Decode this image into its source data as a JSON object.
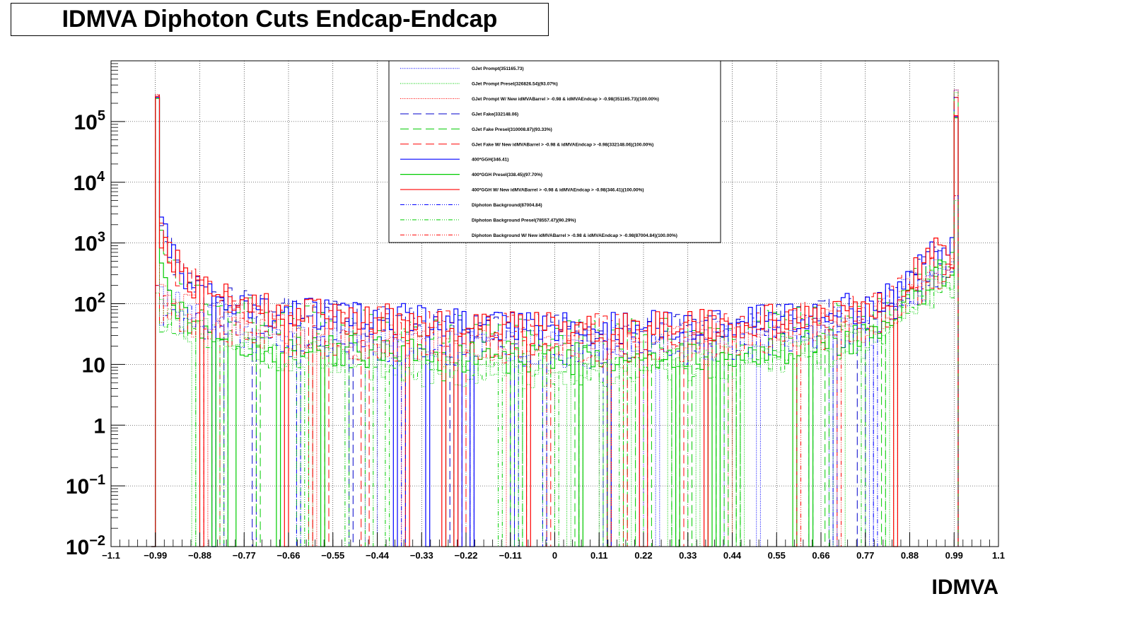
{
  "chart_data": {
    "type": "line",
    "title": "IDMVA Diphoton Cuts Endcap-Endcap",
    "xlabel": "IDMVA",
    "ylabel": "",
    "xlim": [
      -1.1,
      1.1
    ],
    "ylim": [
      0.01,
      1000000
    ],
    "yscale": "log",
    "grid": true,
    "legend_position": "top-center",
    "x_ticks": [
      "−1.1",
      "−0.99",
      "−0.88",
      "−0.77",
      "−0.66",
      "−0.55",
      "−0.44",
      "−0.33",
      "−0.22",
      "−0.11",
      "0",
      "0.11",
      "0.22",
      "0.33",
      "0.44",
      "0.55",
      "0.66",
      "0.77",
      "0.88",
      "0.99",
      "1.1"
    ],
    "x_tick_values": [
      -1.1,
      -0.99,
      -0.88,
      -0.77,
      -0.66,
      -0.55,
      -0.44,
      -0.33,
      -0.22,
      -0.11,
      0,
      0.11,
      0.22,
      0.33,
      0.44,
      0.55,
      0.66,
      0.77,
      0.88,
      0.99,
      1.1
    ],
    "y_ticks": [
      {
        "value": 0.01,
        "base": "10",
        "exp": "−2"
      },
      {
        "value": 0.1,
        "base": "10",
        "exp": "−1"
      },
      {
        "value": 1,
        "base": "1",
        "exp": ""
      },
      {
        "value": 10,
        "base": "10",
        "exp": ""
      },
      {
        "value": 100,
        "base": "10",
        "exp": "2"
      },
      {
        "value": 1000,
        "base": "10",
        "exp": "3"
      },
      {
        "value": 10000,
        "base": "10",
        "exp": "4"
      },
      {
        "value": 100000,
        "base": "10",
        "exp": "5"
      }
    ],
    "series": [
      {
        "name": "GJet Prompt(351165.73)",
        "color": "#0000ff",
        "dash": "1,1.5",
        "width": 1,
        "peak_low": 280000,
        "peak_high": 330000,
        "profile": [
          [
            -0.98,
            150
          ],
          [
            -0.9,
            80
          ],
          [
            -0.7,
            40
          ],
          [
            -0.4,
            25
          ],
          [
            0,
            20
          ],
          [
            0.4,
            30
          ],
          [
            0.8,
            60
          ],
          [
            0.95,
            400
          ]
        ]
      },
      {
        "name": "GJet Prompt Presel(326826.54)(93.07%)",
        "color": "#00cc00",
        "dash": "1,1.5",
        "width": 1,
        "peak_low": 240000,
        "peak_high": 300000,
        "profile": [
          [
            -0.98,
            90
          ],
          [
            -0.9,
            40
          ],
          [
            -0.7,
            15
          ],
          [
            -0.4,
            8
          ],
          [
            0,
            7
          ],
          [
            0.4,
            10
          ],
          [
            0.8,
            25
          ],
          [
            0.95,
            250
          ]
        ]
      },
      {
        "name": "GJet Prompt W/ New idMVABarrel > -0.98 & idMVAEndcap > -0.98(351165.73)(100.00%)",
        "color": "#ff0000",
        "dash": "1,1.5",
        "width": 1,
        "peak_low": 280000,
        "peak_high": 330000,
        "profile": [
          [
            -0.98,
            150
          ],
          [
            -0.9,
            80
          ],
          [
            -0.7,
            40
          ],
          [
            -0.4,
            25
          ],
          [
            0,
            20
          ],
          [
            0.4,
            30
          ],
          [
            0.8,
            60
          ],
          [
            0.95,
            400
          ]
        ]
      },
      {
        "name": "GJet Fake(332148.06)",
        "color": "#0000cc",
        "dash": "12,6",
        "width": 1,
        "peak_low": 270000,
        "peak_high": 250000,
        "profile": [
          [
            -0.98,
            1500
          ],
          [
            -0.93,
            300
          ],
          [
            -0.85,
            120
          ],
          [
            -0.7,
            70
          ],
          [
            -0.4,
            50
          ],
          [
            0,
            35
          ],
          [
            0.4,
            40
          ],
          [
            0.8,
            80
          ],
          [
            0.95,
            500
          ]
        ]
      },
      {
        "name": "GJet Fake Presel(310008.87)(93.33%)",
        "color": "#00cc00",
        "dash": "12,6",
        "width": 1,
        "peak_low": 250000,
        "peak_high": 230000,
        "profile": [
          [
            -0.98,
            1200
          ],
          [
            -0.93,
            250
          ],
          [
            -0.85,
            100
          ],
          [
            -0.7,
            55
          ],
          [
            -0.4,
            40
          ],
          [
            0,
            30
          ],
          [
            0.4,
            35
          ],
          [
            0.8,
            70
          ],
          [
            0.95,
            450
          ]
        ]
      },
      {
        "name": "GJet Fake W/ New idMVABarrel > -0.98 & idMVAEndcap > -0.98(332148.06)(100.00%)",
        "color": "#ff0000",
        "dash": "12,6",
        "width": 1,
        "peak_low": 270000,
        "peak_high": 250000,
        "profile": [
          [
            -0.98,
            1500
          ],
          [
            -0.93,
            300
          ],
          [
            -0.85,
            120
          ],
          [
            -0.7,
            70
          ],
          [
            -0.4,
            50
          ],
          [
            0,
            35
          ],
          [
            0.4,
            40
          ],
          [
            0.8,
            80
          ],
          [
            0.95,
            500
          ]
        ]
      },
      {
        "name": "400*GGH(346.41)",
        "color": "#0000ff",
        "dash": "",
        "width": 1.2,
        "peak_low": 250000,
        "peak_high": 120000,
        "profile": [
          [
            -0.98,
            1800
          ],
          [
            -0.93,
            350
          ],
          [
            -0.85,
            130
          ],
          [
            -0.7,
            75
          ],
          [
            -0.4,
            55
          ],
          [
            0,
            38
          ],
          [
            0.4,
            45
          ],
          [
            0.8,
            90
          ],
          [
            0.95,
            700
          ]
        ]
      },
      {
        "name": "400*GGH Presel(338.45)(97.70%)",
        "color": "#00cc00",
        "dash": "",
        "width": 1.2,
        "peak_low": 240000,
        "peak_high": 115000,
        "profile": [
          [
            -0.98,
            300
          ],
          [
            -0.93,
            60
          ],
          [
            -0.85,
            25
          ],
          [
            -0.7,
            18
          ],
          [
            -0.4,
            15
          ],
          [
            0,
            12
          ],
          [
            0.4,
            14
          ],
          [
            0.8,
            30
          ],
          [
            0.95,
            300
          ]
        ]
      },
      {
        "name": "400*GGH W/ New idMVABarrel > -0.98 & idMVAEndcap > -0.98(346.41)(100.00%)",
        "color": "#ff0000",
        "dash": "",
        "width": 1.2,
        "peak_low": 260000,
        "peak_high": 125000,
        "profile": [
          [
            -0.98,
            1800
          ],
          [
            -0.93,
            350
          ],
          [
            -0.85,
            130
          ],
          [
            -0.7,
            75
          ],
          [
            -0.4,
            55
          ],
          [
            0,
            38
          ],
          [
            0.4,
            45
          ],
          [
            0.8,
            90
          ],
          [
            0.95,
            700
          ]
        ]
      },
      {
        "name": "Diphoton Background(87004.84)",
        "color": "#0000ff",
        "dash": "6,2,1,2,1,2,1,2",
        "width": 1,
        "peak_low": 200,
        "peak_high": 6000,
        "profile": [
          [
            -0.98,
            80
          ],
          [
            -0.9,
            50
          ],
          [
            -0.7,
            25
          ],
          [
            -0.4,
            20
          ],
          [
            0,
            15
          ],
          [
            0.4,
            20
          ],
          [
            0.8,
            40
          ],
          [
            0.95,
            300
          ]
        ]
      },
      {
        "name": "Diphoton Background Presel(78557.47)(90.29%)",
        "color": "#00cc00",
        "dash": "6,2,1,2,1,2,1,2",
        "width": 1,
        "peak_low": 150,
        "peak_high": 5000,
        "profile": [
          [
            -0.98,
            60
          ],
          [
            -0.9,
            30
          ],
          [
            -0.7,
            15
          ],
          [
            -0.4,
            10
          ],
          [
            0,
            8
          ],
          [
            0.4,
            10
          ],
          [
            0.8,
            20
          ],
          [
            0.95,
            200
          ]
        ]
      },
      {
        "name": "Diphoton Background W/ New idMVABarrel > -0.98 & idMVAEndcap > -0.98(87004.84)(100.00%)",
        "color": "#ff0000",
        "dash": "6,2,1,2,1,2,1,2",
        "width": 1,
        "peak_low": 200,
        "peak_high": 6000,
        "profile": [
          [
            -0.98,
            80
          ],
          [
            -0.9,
            50
          ],
          [
            -0.7,
            25
          ],
          [
            -0.4,
            20
          ],
          [
            0,
            15
          ],
          [
            0.4,
            20
          ],
          [
            0.8,
            40
          ],
          [
            0.95,
            300
          ]
        ]
      }
    ]
  }
}
